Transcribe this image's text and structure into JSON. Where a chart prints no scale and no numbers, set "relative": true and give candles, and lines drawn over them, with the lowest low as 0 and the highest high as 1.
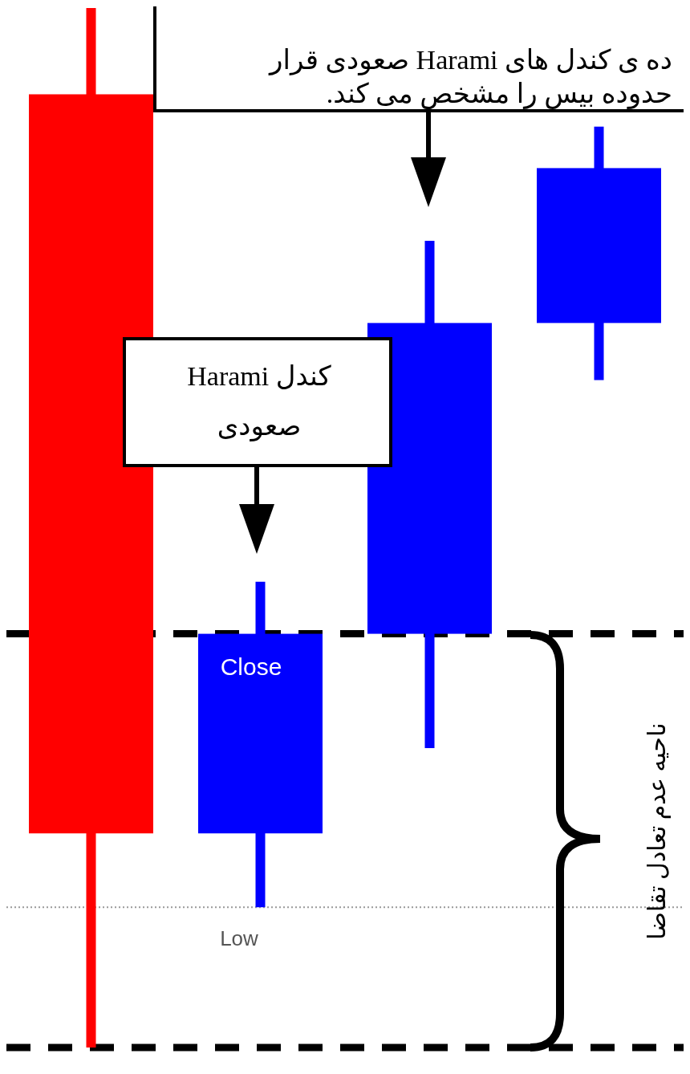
{
  "chart_data": {
    "type": "candlestick",
    "relative": true,
    "categories": [
      null,
      null,
      null,
      null
    ],
    "ohlc": [
      [
        0.917,
        1,
        0,
        0.206
      ],
      [
        0.206,
        0.448,
        0.135,
        0.398
      ],
      [
        0.398,
        0.776,
        0.288,
        0.697
      ],
      [
        0.697,
        0.886,
        0.642,
        0.846
      ]
    ],
    "colors": [
      "#ff0000",
      "#0000ff",
      "#0000ff",
      "#0000ff"
    ],
    "ref_lines": [
      {
        "axis": "y",
        "value": 0.398,
        "line_style": "dashed",
        "color": "#000000"
      },
      {
        "axis": "y",
        "value": 0,
        "line_style": "dashed",
        "color": "#000000"
      },
      {
        "axis": "y",
        "value": 0.135,
        "line_style": "dotted",
        "color": "#999999"
      }
    ],
    "annotations": [
      "ده ی کندل های Harami صعودی قرار",
      "حدوده بیس را مشخص می کند.",
      "کندل Harami صعودی",
      "Close",
      "Low",
      "ناحیه عدم تعادل تقاضا"
    ]
  }
}
